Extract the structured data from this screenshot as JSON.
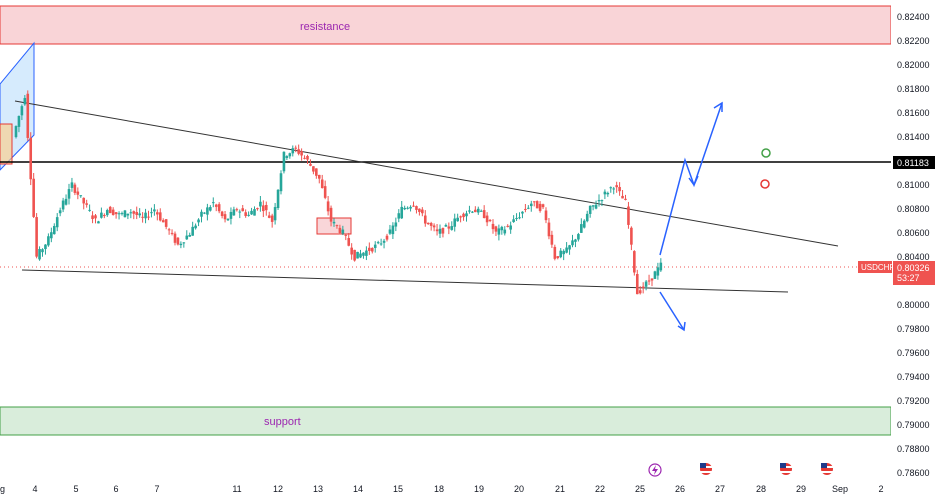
{
  "chart_data": {
    "type": "candlestick",
    "symbol": "USDCHF",
    "price": "0.80326",
    "countdown": "53:27",
    "ylim": [
      0.786,
      0.825
    ],
    "x_ticks": [
      "4",
      "5",
      "6",
      "7",
      "11",
      "12",
      "13",
      "14",
      "15",
      "18",
      "19",
      "20",
      "21",
      "22",
      "25",
      "26",
      "27",
      "28",
      "29",
      "Sep",
      "2"
    ],
    "x_tick_left_edge": "g",
    "y_ticks": [
      "0.82400",
      "0.82200",
      "0.82000",
      "0.81800",
      "0.81600",
      "0.81400",
      "0.81200",
      "0.81000",
      "0.80800",
      "0.80600",
      "0.80400",
      "0.80200",
      "0.80000",
      "0.79800",
      "0.79600",
      "0.79400",
      "0.79200",
      "0.79000",
      "0.78800",
      "0.78600"
    ],
    "resistance": {
      "label": "resistance",
      "from": 0.8218,
      "to": 0.8248
    },
    "support": {
      "label": "support",
      "from": 0.7894,
      "to": 0.7917
    },
    "horizontal_level": {
      "value": 0.81183,
      "label": "0.81183"
    },
    "series_close": [
      0.8175,
      0.804,
      0.8055,
      0.808,
      0.81,
      0.8085,
      0.807,
      0.808,
      0.8075,
      0.8078,
      0.8072,
      0.808,
      0.8065,
      0.805,
      0.806,
      0.8075,
      0.8085,
      0.807,
      0.808,
      0.8075,
      0.8085,
      0.807,
      0.8125,
      0.813,
      0.812,
      0.8105,
      0.807,
      0.806,
      0.804,
      0.8045,
      0.805,
      0.806,
      0.808,
      0.8085,
      0.807,
      0.806,
      0.8065,
      0.8075,
      0.808,
      0.8075,
      0.806,
      0.8065,
      0.8075,
      0.8085,
      0.808,
      0.804,
      0.8045,
      0.806,
      0.808,
      0.809,
      0.81,
      0.8085,
      0.801,
      0.802,
      0.8033
    ],
    "colors": {
      "up": "#26a69a",
      "down": "#ef5350",
      "resistance": "#f7c5c9",
      "support": "#cfe8d2",
      "projection": "#2962ff"
    }
  }
}
